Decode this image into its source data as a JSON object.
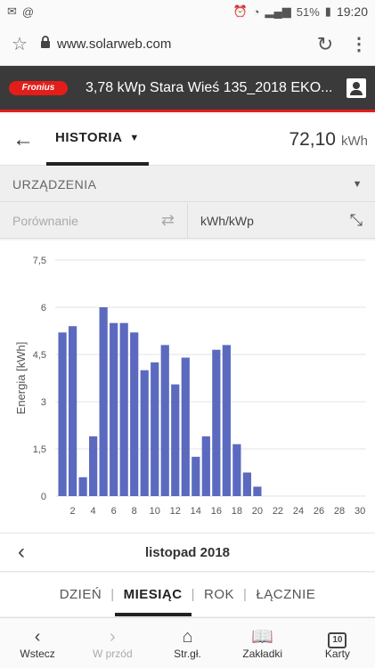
{
  "status_bar": {
    "battery": "51%",
    "time": "19:20"
  },
  "browser": {
    "url": "www.solarweb.com"
  },
  "app": {
    "brand": "Fronius",
    "site_title": "3,78 kWp Stara Wieś 135_2018 EKO..."
  },
  "history": {
    "tab_label": "HISTORIA",
    "total_value": "72,10",
    "total_unit": "kWh"
  },
  "devices": {
    "label": "URZĄDZENIA"
  },
  "compare": {
    "placeholder": "Porównanie",
    "unit_label": "kWh/kWp"
  },
  "chart_data": {
    "type": "bar",
    "ylabel": "Energia [kWh]",
    "xlabel": "",
    "ylim": [
      0,
      7.5
    ],
    "yticks": [
      "0",
      "1,5",
      "3",
      "4,5",
      "6",
      "7,5"
    ],
    "xticks": [
      "2",
      "4",
      "6",
      "8",
      "10",
      "12",
      "14",
      "16",
      "18",
      "20",
      "22",
      "24",
      "26",
      "28",
      "30"
    ],
    "x": [
      1,
      2,
      3,
      4,
      5,
      6,
      7,
      8,
      9,
      10,
      11,
      12,
      13,
      14,
      15,
      16,
      17,
      18,
      19,
      20
    ],
    "values": [
      5.2,
      5.4,
      0.6,
      1.9,
      6.0,
      5.5,
      5.5,
      5.2,
      4.0,
      4.25,
      4.8,
      3.55,
      4.4,
      1.25,
      1.9,
      4.65,
      4.8,
      1.65,
      0.75,
      0.3
    ],
    "color": "#5b6abf",
    "grid": true
  },
  "month": {
    "label": "listopad 2018"
  },
  "periods": {
    "day": "DZIEŃ",
    "month": "MIESIĄC",
    "year": "ROK",
    "total": "ŁĄCZNIE"
  },
  "nav": {
    "back": "Wstecz",
    "forward": "W przód",
    "home": "Str.gł.",
    "bookmarks": "Zakładki",
    "tabs": "Karty",
    "tab_count": "10"
  }
}
